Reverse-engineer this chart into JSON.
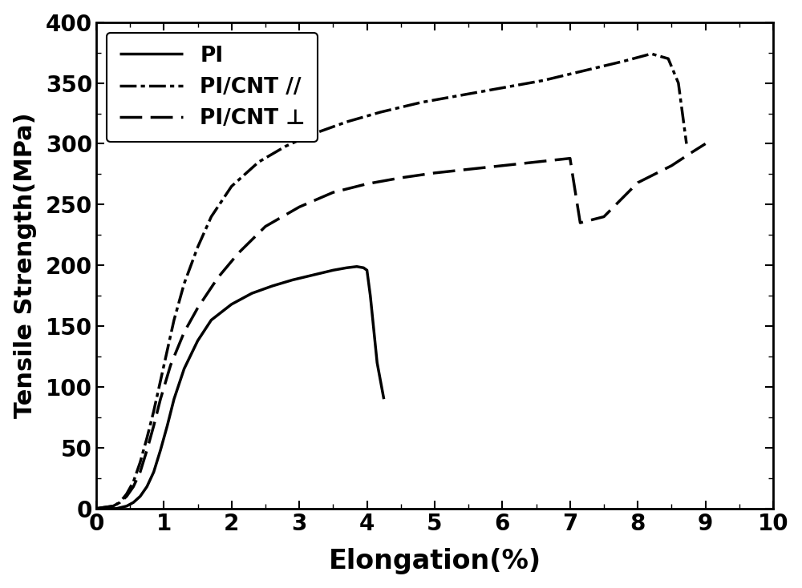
{
  "title": "",
  "xlabel": "Elongation(%)",
  "ylabel": "Tensile Strength(MPa)",
  "xlim": [
    0,
    10
  ],
  "ylim": [
    0,
    400
  ],
  "xticks": [
    0,
    1,
    2,
    3,
    4,
    5,
    6,
    7,
    8,
    9,
    10
  ],
  "yticks": [
    0,
    50,
    100,
    150,
    200,
    250,
    300,
    350,
    400
  ],
  "background_color": "#ffffff",
  "line_color": "#000000",
  "PI": {
    "x": [
      0.0,
      0.3,
      0.45,
      0.55,
      0.65,
      0.75,
      0.85,
      0.95,
      1.05,
      1.15,
      1.3,
      1.5,
      1.7,
      2.0,
      2.3,
      2.6,
      2.9,
      3.2,
      3.5,
      3.7,
      3.85,
      3.95,
      4.0,
      4.05,
      4.15,
      4.25
    ],
    "y": [
      0,
      0,
      2,
      5,
      10,
      18,
      30,
      48,
      68,
      90,
      115,
      138,
      155,
      168,
      177,
      183,
      188,
      192,
      196,
      198,
      199,
      198,
      196,
      175,
      120,
      90
    ],
    "style": "solid",
    "linewidth": 2.5,
    "label": "PI"
  },
  "PI_CNT_parallel": {
    "x": [
      0.0,
      0.25,
      0.35,
      0.45,
      0.55,
      0.65,
      0.75,
      0.85,
      0.95,
      1.05,
      1.15,
      1.3,
      1.5,
      1.7,
      2.0,
      2.4,
      2.8,
      3.2,
      3.7,
      4.2,
      4.8,
      5.4,
      6.0,
      6.6,
      7.2,
      7.8,
      8.2,
      8.45,
      8.6,
      8.72
    ],
    "y": [
      0,
      2,
      5,
      12,
      22,
      38,
      58,
      80,
      105,
      130,
      155,
      185,
      215,
      240,
      265,
      285,
      298,
      308,
      318,
      326,
      334,
      340,
      346,
      352,
      360,
      368,
      374,
      370,
      350,
      300
    ],
    "style": "dashdot",
    "linewidth": 2.5,
    "label": "PI/CNT //"
  },
  "PI_CNT_perp": {
    "x": [
      0.0,
      0.25,
      0.35,
      0.45,
      0.55,
      0.65,
      0.75,
      0.85,
      0.95,
      1.1,
      1.3,
      1.5,
      1.8,
      2.1,
      2.5,
      3.0,
      3.5,
      4.0,
      4.5,
      5.0,
      5.5,
      6.0,
      6.5,
      7.0,
      7.05,
      7.15,
      7.5,
      8.0,
      8.5,
      8.8,
      9.0
    ],
    "y": [
      0,
      2,
      5,
      10,
      18,
      30,
      48,
      68,
      90,
      118,
      145,
      165,
      190,
      210,
      232,
      248,
      260,
      267,
      272,
      276,
      279,
      282,
      285,
      288,
      270,
      235,
      240,
      268,
      282,
      293,
      300
    ],
    "style": "dashed",
    "linewidth": 2.5,
    "label": "PI/CNT ⊥"
  },
  "xlabel_fontsize": 24,
  "ylabel_fontsize": 22,
  "tick_fontsize": 20,
  "legend_fontsize": 19,
  "legend_loc": "upper left"
}
